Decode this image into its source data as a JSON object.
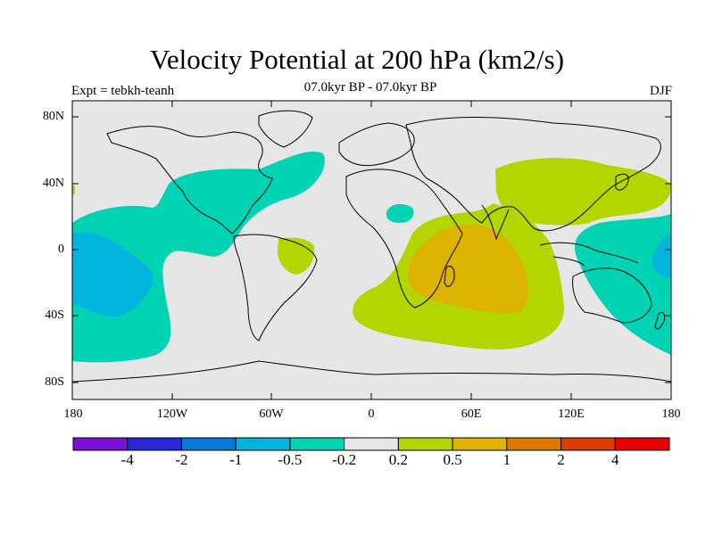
{
  "title": "Velocity Potential at 200 hPa (km2/s)",
  "subtitle": "07.0kyr BP - 07.0kyr BP",
  "experiment_label": "Expt = tebkh-teanh",
  "season_label": "DJF",
  "lat_ticks": [
    "80N",
    "40N",
    "0",
    "40S",
    "80S"
  ],
  "lon_ticks": [
    "180",
    "120W",
    "60W",
    "0",
    "60E",
    "120E",
    "180"
  ],
  "colorbar": {
    "colors": [
      "#7b10d8",
      "#2828d8",
      "#0a78d8",
      "#00b4dc",
      "#00d2b4",
      "#e6e6e6",
      "#b4d600",
      "#dcb400",
      "#dc7800",
      "#dc3c00",
      "#e60000"
    ],
    "labels": [
      "-4",
      "-2",
      "-1",
      "-0.5",
      "-0.2",
      "0.2",
      "0.5",
      "1",
      "2",
      "4"
    ]
  },
  "map_colors": {
    "background": "#e6e6e6",
    "neg_weak": "#00d2b4",
    "neg_moderate": "#00b4dc",
    "pos_weak": "#b4d600",
    "pos_moderate": "#dcb400"
  }
}
